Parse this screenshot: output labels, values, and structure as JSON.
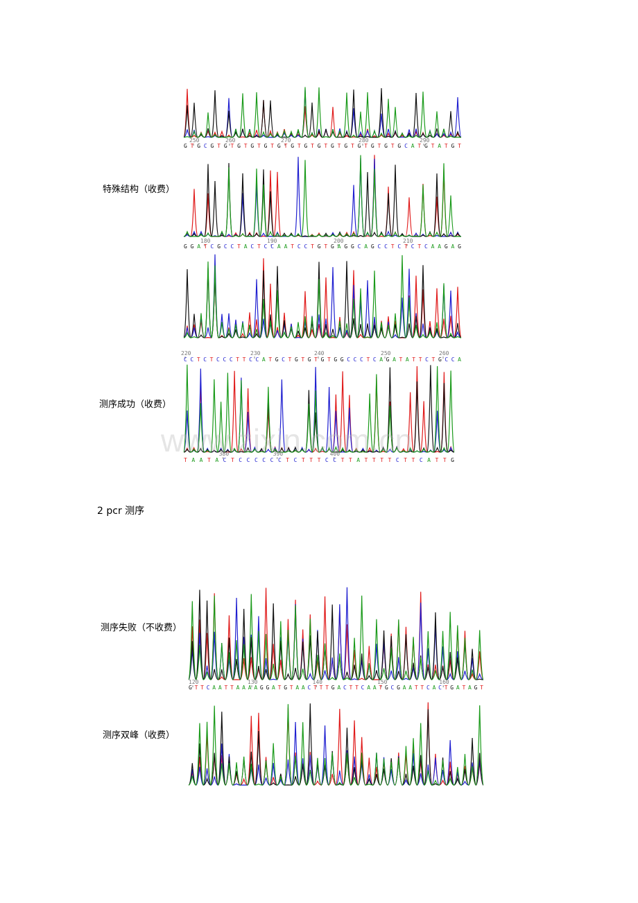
{
  "labels": [
    "特殊结构（收费）",
    "测序成功（收费）",
    "测序失败（不收费）",
    "测序双峰（收费）"
  ],
  "heading": "2 pcr 测序",
  "watermark": "www.zixin.com.cn",
  "chromatograms": [
    {
      "ticks": [
        "250",
        "260",
        "270",
        "280",
        "290"
      ],
      "sequence": "GTGCGTGTGTGTGTGTGTGTGTGTGTGTGTGTGCATGTATGT"
    },
    {
      "ticks": [
        "180",
        "190",
        "200",
        "210"
      ],
      "sequence": "GGATCGCCTACTCCAATCCTGTGAGGCAGCCTCTCTCAAGAG"
    },
    {
      "ticks": [
        "220",
        "230",
        "240",
        "250",
        "260"
      ],
      "sequence": "CCTCTCCCTTCCATGCTGTGTGTGGCCCTCAGATATTCTGCCA"
    },
    {
      "ticks": [
        "380",
        "390",
        "400"
      ],
      "sequence": "TAATACTCCCCCCTCTTTCCTTATTTTCTTCATTG"
    },
    {
      "ticks": [
        "120",
        "130",
        "140",
        "150",
        "160"
      ],
      "sequence": "GTTCAATTAAAAGGATGTAACTTTGACTTCAATGCGAATTCACTGATAGT"
    },
    {
      "ticks": [],
      "sequence": ""
    }
  ]
}
